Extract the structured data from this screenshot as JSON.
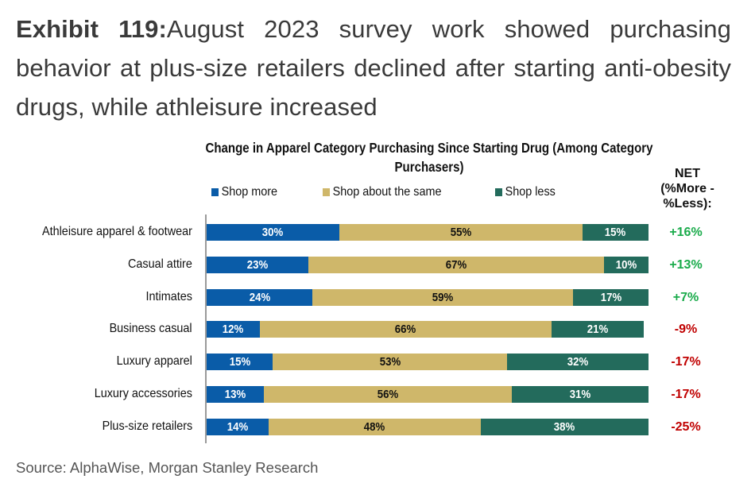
{
  "headline": {
    "lead": "Exhibit 119:",
    "text": "August 2023 survey work showed purchasing behavior at plus-size retailers declined after starting anti-obesity drugs, while athleisure increased"
  },
  "colors": {
    "shop_more": "#0a5ca8",
    "shop_same": "#cfb76a",
    "shop_less": "#236b5c",
    "net_positive": "#1aab4b",
    "net_negative": "#c00000"
  },
  "chart_data": {
    "type": "bar",
    "orientation": "horizontal",
    "stacked": true,
    "title": "Change in Apparel Category Purchasing Since Starting Drug (Among Category Purchasers)",
    "xlabel": "",
    "ylabel": "",
    "xlim": [
      0,
      100
    ],
    "grid": false,
    "legend_position": "top",
    "categories": [
      "Athleisure apparel & footwear",
      "Casual attire",
      "Intimates",
      "Business casual",
      "Luxury apparel",
      "Luxury accessories",
      "Plus-size retailers"
    ],
    "series": [
      {
        "name": "Shop more",
        "values": [
          30,
          23,
          24,
          12,
          15,
          13,
          14
        ],
        "labels": [
          "30%",
          "23%",
          "24%",
          "12%",
          "15%",
          "13%",
          "14%"
        ]
      },
      {
        "name": "Shop about the same",
        "values": [
          55,
          67,
          59,
          66,
          53,
          56,
          48
        ],
        "labels": [
          "55%",
          "67%",
          "59%",
          "66%",
          "53%",
          "56%",
          "48%"
        ]
      },
      {
        "name": "Shop less",
        "values": [
          15,
          10,
          17,
          21,
          32,
          31,
          38
        ],
        "labels": [
          "15%",
          "10%",
          "17%",
          "21%",
          "32%",
          "31%",
          "38%"
        ]
      }
    ],
    "net": {
      "header": [
        "NET",
        "(%More -",
        "%Less):"
      ],
      "values": [
        16,
        13,
        7,
        -9,
        -17,
        -17,
        -25
      ],
      "labels": [
        "+16%",
        "+13%",
        "+7%",
        "-9%",
        "-17%",
        "-17%",
        "-25%"
      ]
    }
  },
  "source": "Source: AlphaWise, Morgan Stanley Research"
}
